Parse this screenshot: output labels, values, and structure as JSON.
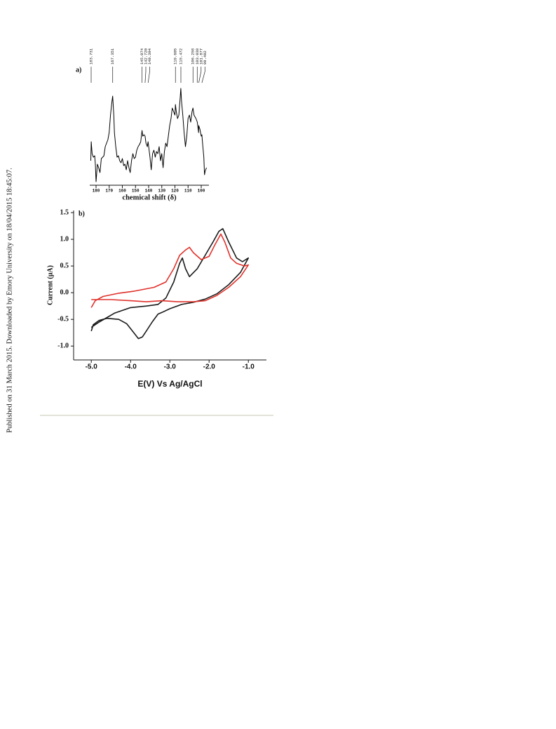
{
  "side_text": "Published on 31 March 2015. Downloaded by Emory University on 18/04/2015 18:45:07.",
  "chart_data": [
    {
      "type": "line",
      "panel_label": "a)",
      "xlabel": "chemical shift (δ)",
      "xlim": [
        184.8,
        94.13
      ],
      "ylim": [
        0,
        150
      ],
      "xticks": [
        180,
        170,
        160,
        150,
        140,
        130,
        120,
        110,
        100
      ],
      "peak_labels": [
        183.731,
        167.351,
        145.074,
        {
          "value": 142.72,
          "label": "142.720"
        },
        140.394,
        119.605,
        115.472,
        106.258,
        103.038,
        101.877,
        99.492
      ],
      "series": [
        {
          "color": "#000000",
          "x": [
            184,
            183.7,
            183,
            182,
            181,
            180.5,
            180,
            179,
            178,
            177,
            176,
            175,
            174,
            173,
            172,
            171,
            170,
            169,
            168,
            167.35,
            166.5,
            166,
            165,
            164,
            163,
            162,
            161,
            160,
            159,
            158,
            157,
            156,
            155,
            154,
            153,
            152,
            151,
            150,
            149,
            148,
            147,
            146,
            145,
            144.5,
            143.5,
            142.7,
            142,
            141,
            140.4,
            139,
            138,
            137,
            136,
            135,
            134,
            133,
            132,
            131,
            130,
            129,
            128,
            127,
            126,
            125,
            124,
            123,
            122,
            121,
            120,
            119.6,
            119,
            118,
            117,
            116,
            115.5,
            115,
            114,
            113,
            112,
            111,
            110,
            109,
            108,
            107,
            106.3,
            105.5,
            104,
            103,
            102,
            101.9,
            101,
            100,
            99.5,
            99,
            98,
            97.5,
            97,
            96
          ],
          "values": [
            35,
            62,
            45,
            40,
            42,
            28,
            5,
            30,
            25,
            18,
            38,
            40,
            42,
            55,
            60,
            65,
            75,
            100,
            118,
            127,
            100,
            75,
            55,
            40,
            42,
            35,
            32,
            38,
            28,
            30,
            22,
            35,
            25,
            18,
            35,
            45,
            38,
            40,
            50,
            55,
            58,
            62,
            78,
            70,
            72,
            70,
            60,
            55,
            62,
            40,
            22,
            45,
            50,
            40,
            48,
            45,
            55,
            35,
            45,
            25,
            48,
            60,
            55,
            70,
            85,
            95,
            110,
            105,
            100,
            115,
            105,
            95,
            100,
            125,
            138,
            120,
            100,
            75,
            55,
            70,
            95,
            100,
            90,
            105,
            110,
            100,
            95,
            90,
            75,
            85,
            80,
            70,
            72,
            60,
            40,
            15,
            20,
            25
          ]
        }
      ]
    },
    {
      "type": "line",
      "panel_label": "b)",
      "xlabel": "E(V) Vs Ag/AgCl",
      "ylabel": "Current (μA)",
      "xlim": [
        -5.45,
        -0.54
      ],
      "ylim": [
        -1.26,
        1.54
      ],
      "xticks": [
        {
          "value": -5,
          "label": "-5.0"
        },
        {
          "value": -4,
          "label": "-4.0"
        },
        {
          "value": -3,
          "label": "-3.0"
        },
        {
          "value": -2,
          "label": "-2.0"
        },
        {
          "value": -1,
          "label": "-1.0"
        }
      ],
      "yticks": [
        {
          "value": 1.5,
          "label": "1.5"
        },
        {
          "value": 1,
          "label": "1.0"
        },
        {
          "value": 0.5,
          "label": "0.5"
        },
        {
          "value": 0,
          "label": "0.0"
        },
        {
          "value": -0.5,
          "label": "-0.5"
        },
        {
          "value": -1,
          "label": "-1.0"
        }
      ],
      "series": [
        {
          "color": "#1a1a1a",
          "x": [
            -5.0,
            -4.95,
            -4.8,
            -4.6,
            -4.3,
            -4.1,
            -3.95,
            -3.8,
            -3.7,
            -3.6,
            -3.45,
            -3.3,
            -3.2,
            -3.0,
            -2.7,
            -2.4,
            -2.1,
            -1.8,
            -1.5,
            -1.2,
            -1.0,
            -1.15,
            -1.3,
            -1.5,
            -1.65,
            -1.75,
            -1.9,
            -2.1,
            -2.3,
            -2.5,
            -2.6,
            -2.68,
            -2.75,
            -2.9,
            -3.1,
            -3.3,
            -3.6,
            -4.0,
            -4.4,
            -4.8,
            -5.0
          ],
          "values": [
            -0.72,
            -0.6,
            -0.52,
            -0.48,
            -0.5,
            -0.58,
            -0.72,
            -0.86,
            -0.83,
            -0.72,
            -0.55,
            -0.4,
            -0.37,
            -0.3,
            -0.22,
            -0.18,
            -0.12,
            -0.02,
            0.15,
            0.38,
            0.65,
            0.58,
            0.65,
            0.95,
            1.2,
            1.15,
            0.95,
            0.7,
            0.45,
            0.3,
            0.45,
            0.65,
            0.55,
            0.2,
            -0.1,
            -0.22,
            -0.25,
            -0.28,
            -0.38,
            -0.55,
            -0.65
          ]
        },
        {
          "color": "#e0312b",
          "x": [
            -5.0,
            -4.9,
            -4.7,
            -4.3,
            -3.9,
            -3.4,
            -3.1,
            -2.9,
            -2.75,
            -2.6,
            -2.5,
            -2.4,
            -2.2,
            -2.0,
            -1.85,
            -1.7,
            -1.6,
            -1.45,
            -1.3,
            -1.1,
            -1.0,
            -1.2,
            -1.5,
            -1.8,
            -2.1,
            -2.4,
            -2.8,
            -3.2,
            -3.6,
            -4.0,
            -4.5,
            -5.0
          ],
          "values": [
            -0.28,
            -0.15,
            -0.07,
            -0.01,
            0.03,
            0.1,
            0.2,
            0.45,
            0.7,
            0.8,
            0.85,
            0.75,
            0.62,
            0.68,
            0.9,
            1.1,
            0.95,
            0.65,
            0.55,
            0.5,
            0.52,
            0.3,
            0.1,
            -0.05,
            -0.15,
            -0.17,
            -0.17,
            -0.15,
            -0.17,
            -0.15,
            -0.13,
            -0.13
          ]
        }
      ]
    }
  ]
}
